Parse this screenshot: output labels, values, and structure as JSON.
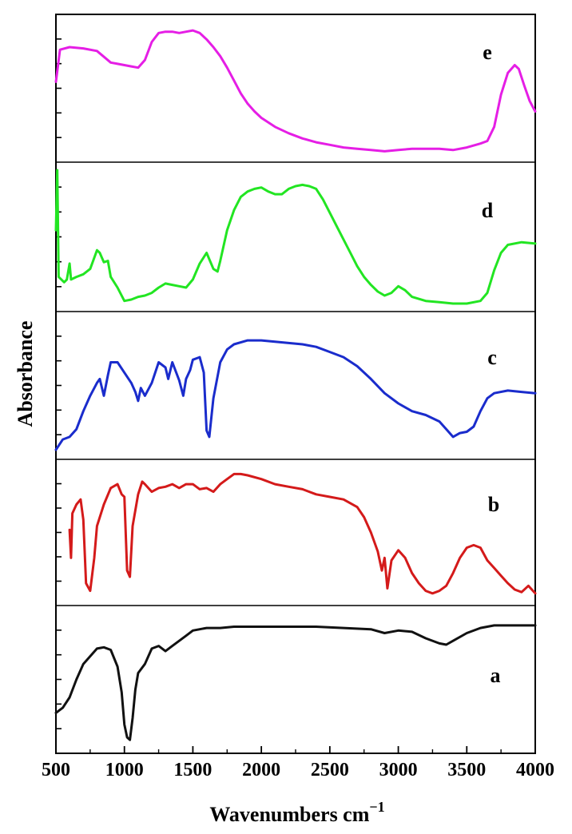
{
  "chart_data": {
    "type": "line",
    "xlabel_text": "Wavenumbers cm",
    "xlabel_sup": "−1",
    "ylabel": "Absorbance",
    "xlim": [
      500,
      4000
    ],
    "x_ticks": [
      500,
      1000,
      1500,
      2000,
      2500,
      3000,
      3500,
      4000
    ],
    "x_tick_labels": [
      "500",
      "1000",
      "1500",
      "2000",
      "2500",
      "3000",
      "3500",
      "4000"
    ],
    "panels": [
      {
        "label": "e",
        "color": "#e51ee5",
        "points": [
          [
            500,
            0.55
          ],
          [
            530,
            0.8
          ],
          [
            600,
            0.82
          ],
          [
            700,
            0.81
          ],
          [
            800,
            0.79
          ],
          [
            900,
            0.7
          ],
          [
            950,
            0.69
          ],
          [
            1000,
            0.68
          ],
          [
            1050,
            0.67
          ],
          [
            1100,
            0.66
          ],
          [
            1150,
            0.72
          ],
          [
            1200,
            0.86
          ],
          [
            1250,
            0.93
          ],
          [
            1300,
            0.94
          ],
          [
            1350,
            0.94
          ],
          [
            1400,
            0.93
          ],
          [
            1450,
            0.94
          ],
          [
            1500,
            0.95
          ],
          [
            1550,
            0.93
          ],
          [
            1600,
            0.88
          ],
          [
            1650,
            0.82
          ],
          [
            1700,
            0.75
          ],
          [
            1750,
            0.66
          ],
          [
            1800,
            0.56
          ],
          [
            1850,
            0.46
          ],
          [
            1900,
            0.38
          ],
          [
            1950,
            0.32
          ],
          [
            2000,
            0.27
          ],
          [
            2100,
            0.2
          ],
          [
            2200,
            0.15
          ],
          [
            2300,
            0.11
          ],
          [
            2400,
            0.08
          ],
          [
            2500,
            0.06
          ],
          [
            2600,
            0.04
          ],
          [
            2700,
            0.03
          ],
          [
            2800,
            0.02
          ],
          [
            2900,
            0.01
          ],
          [
            3000,
            0.02
          ],
          [
            3100,
            0.03
          ],
          [
            3200,
            0.03
          ],
          [
            3300,
            0.03
          ],
          [
            3400,
            0.02
          ],
          [
            3500,
            0.04
          ],
          [
            3600,
            0.07
          ],
          [
            3650,
            0.09
          ],
          [
            3700,
            0.2
          ],
          [
            3750,
            0.45
          ],
          [
            3800,
            0.62
          ],
          [
            3850,
            0.68
          ],
          [
            3880,
            0.65
          ],
          [
            3920,
            0.52
          ],
          [
            3960,
            0.4
          ],
          [
            4000,
            0.32
          ]
        ]
      },
      {
        "label": "d",
        "color": "#22e522",
        "points": [
          [
            500,
            0.55
          ],
          [
            510,
            1.0
          ],
          [
            520,
            0.2
          ],
          [
            560,
            0.16
          ],
          [
            580,
            0.18
          ],
          [
            600,
            0.3
          ],
          [
            610,
            0.18
          ],
          [
            650,
            0.2
          ],
          [
            700,
            0.22
          ],
          [
            750,
            0.26
          ],
          [
            800,
            0.4
          ],
          [
            820,
            0.38
          ],
          [
            850,
            0.31
          ],
          [
            880,
            0.32
          ],
          [
            900,
            0.2
          ],
          [
            950,
            0.12
          ],
          [
            1000,
            0.02
          ],
          [
            1050,
            0.03
          ],
          [
            1100,
            0.05
          ],
          [
            1150,
            0.06
          ],
          [
            1200,
            0.08
          ],
          [
            1250,
            0.12
          ],
          [
            1300,
            0.15
          ],
          [
            1350,
            0.14
          ],
          [
            1400,
            0.13
          ],
          [
            1450,
            0.12
          ],
          [
            1500,
            0.18
          ],
          [
            1550,
            0.3
          ],
          [
            1600,
            0.38
          ],
          [
            1650,
            0.26
          ],
          [
            1680,
            0.24
          ],
          [
            1700,
            0.32
          ],
          [
            1750,
            0.55
          ],
          [
            1800,
            0.7
          ],
          [
            1850,
            0.8
          ],
          [
            1900,
            0.84
          ],
          [
            1950,
            0.86
          ],
          [
            2000,
            0.87
          ],
          [
            2050,
            0.84
          ],
          [
            2100,
            0.82
          ],
          [
            2150,
            0.82
          ],
          [
            2200,
            0.86
          ],
          [
            2250,
            0.88
          ],
          [
            2300,
            0.89
          ],
          [
            2350,
            0.88
          ],
          [
            2400,
            0.86
          ],
          [
            2450,
            0.78
          ],
          [
            2500,
            0.68
          ],
          [
            2550,
            0.58
          ],
          [
            2600,
            0.48
          ],
          [
            2650,
            0.38
          ],
          [
            2700,
            0.28
          ],
          [
            2750,
            0.2
          ],
          [
            2800,
            0.14
          ],
          [
            2850,
            0.09
          ],
          [
            2900,
            0.06
          ],
          [
            2950,
            0.08
          ],
          [
            3000,
            0.13
          ],
          [
            3050,
            0.1
          ],
          [
            3100,
            0.05
          ],
          [
            3200,
            0.02
          ],
          [
            3300,
            0.01
          ],
          [
            3400,
            0.0
          ],
          [
            3500,
            0.0
          ],
          [
            3600,
            0.02
          ],
          [
            3650,
            0.08
          ],
          [
            3700,
            0.25
          ],
          [
            3750,
            0.38
          ],
          [
            3800,
            0.44
          ],
          [
            3900,
            0.46
          ],
          [
            4000,
            0.45
          ]
        ]
      },
      {
        "label": "c",
        "color": "#1a2ccc",
        "points": [
          [
            500,
            0.0
          ],
          [
            550,
            0.08
          ],
          [
            600,
            0.1
          ],
          [
            650,
            0.16
          ],
          [
            700,
            0.3
          ],
          [
            750,
            0.42
          ],
          [
            800,
            0.52
          ],
          [
            820,
            0.55
          ],
          [
            850,
            0.42
          ],
          [
            880,
            0.58
          ],
          [
            900,
            0.68
          ],
          [
            950,
            0.68
          ],
          [
            1000,
            0.6
          ],
          [
            1050,
            0.52
          ],
          [
            1080,
            0.45
          ],
          [
            1100,
            0.38
          ],
          [
            1120,
            0.48
          ],
          [
            1150,
            0.42
          ],
          [
            1200,
            0.52
          ],
          [
            1250,
            0.68
          ],
          [
            1300,
            0.64
          ],
          [
            1320,
            0.55
          ],
          [
            1350,
            0.68
          ],
          [
            1400,
            0.54
          ],
          [
            1430,
            0.42
          ],
          [
            1450,
            0.55
          ],
          [
            1480,
            0.62
          ],
          [
            1500,
            0.7
          ],
          [
            1550,
            0.72
          ],
          [
            1580,
            0.6
          ],
          [
            1600,
            0.15
          ],
          [
            1620,
            0.1
          ],
          [
            1650,
            0.4
          ],
          [
            1700,
            0.68
          ],
          [
            1750,
            0.78
          ],
          [
            1800,
            0.82
          ],
          [
            1900,
            0.85
          ],
          [
            2000,
            0.85
          ],
          [
            2100,
            0.84
          ],
          [
            2200,
            0.83
          ],
          [
            2300,
            0.82
          ],
          [
            2400,
            0.8
          ],
          [
            2500,
            0.76
          ],
          [
            2600,
            0.72
          ],
          [
            2700,
            0.65
          ],
          [
            2800,
            0.55
          ],
          [
            2900,
            0.44
          ],
          [
            3000,
            0.36
          ],
          [
            3100,
            0.3
          ],
          [
            3200,
            0.27
          ],
          [
            3300,
            0.22
          ],
          [
            3350,
            0.16
          ],
          [
            3400,
            0.1
          ],
          [
            3450,
            0.13
          ],
          [
            3500,
            0.14
          ],
          [
            3550,
            0.18
          ],
          [
            3600,
            0.3
          ],
          [
            3650,
            0.4
          ],
          [
            3700,
            0.44
          ],
          [
            3800,
            0.46
          ],
          [
            3900,
            0.45
          ],
          [
            4000,
            0.44
          ]
        ]
      },
      {
        "label": "b",
        "color": "#d41a1a",
        "points": [
          [
            600,
            0.52
          ],
          [
            610,
            0.3
          ],
          [
            620,
            0.65
          ],
          [
            650,
            0.72
          ],
          [
            680,
            0.76
          ],
          [
            700,
            0.6
          ],
          [
            720,
            0.1
          ],
          [
            750,
            0.04
          ],
          [
            780,
            0.3
          ],
          [
            800,
            0.55
          ],
          [
            850,
            0.72
          ],
          [
            900,
            0.85
          ],
          [
            950,
            0.88
          ],
          [
            980,
            0.8
          ],
          [
            1000,
            0.78
          ],
          [
            1020,
            0.2
          ],
          [
            1040,
            0.15
          ],
          [
            1060,
            0.55
          ],
          [
            1100,
            0.8
          ],
          [
            1130,
            0.9
          ],
          [
            1150,
            0.88
          ],
          [
            1200,
            0.82
          ],
          [
            1250,
            0.85
          ],
          [
            1300,
            0.86
          ],
          [
            1350,
            0.88
          ],
          [
            1400,
            0.85
          ],
          [
            1450,
            0.88
          ],
          [
            1500,
            0.88
          ],
          [
            1550,
            0.84
          ],
          [
            1600,
            0.85
          ],
          [
            1650,
            0.82
          ],
          [
            1700,
            0.88
          ],
          [
            1750,
            0.92
          ],
          [
            1800,
            0.96
          ],
          [
            1850,
            0.96
          ],
          [
            1900,
            0.95
          ],
          [
            2000,
            0.92
          ],
          [
            2100,
            0.88
          ],
          [
            2200,
            0.86
          ],
          [
            2300,
            0.84
          ],
          [
            2400,
            0.8
          ],
          [
            2500,
            0.78
          ],
          [
            2600,
            0.76
          ],
          [
            2700,
            0.7
          ],
          [
            2750,
            0.62
          ],
          [
            2800,
            0.5
          ],
          [
            2850,
            0.35
          ],
          [
            2880,
            0.2
          ],
          [
            2900,
            0.3
          ],
          [
            2920,
            0.06
          ],
          [
            2950,
            0.28
          ],
          [
            3000,
            0.36
          ],
          [
            3050,
            0.3
          ],
          [
            3100,
            0.18
          ],
          [
            3150,
            0.1
          ],
          [
            3200,
            0.04
          ],
          [
            3250,
            0.02
          ],
          [
            3300,
            0.04
          ],
          [
            3350,
            0.08
          ],
          [
            3400,
            0.18
          ],
          [
            3450,
            0.3
          ],
          [
            3500,
            0.38
          ],
          [
            3550,
            0.4
          ],
          [
            3600,
            0.38
          ],
          [
            3650,
            0.28
          ],
          [
            3700,
            0.22
          ],
          [
            3750,
            0.16
          ],
          [
            3800,
            0.1
          ],
          [
            3850,
            0.05
          ],
          [
            3900,
            0.03
          ],
          [
            3950,
            0.08
          ],
          [
            4000,
            0.02
          ]
        ]
      },
      {
        "label": "a",
        "color": "#111111",
        "points": [
          [
            500,
            0.24
          ],
          [
            550,
            0.28
          ],
          [
            600,
            0.36
          ],
          [
            650,
            0.5
          ],
          [
            700,
            0.62
          ],
          [
            750,
            0.68
          ],
          [
            800,
            0.74
          ],
          [
            850,
            0.75
          ],
          [
            900,
            0.73
          ],
          [
            950,
            0.6
          ],
          [
            980,
            0.4
          ],
          [
            1000,
            0.15
          ],
          [
            1020,
            0.05
          ],
          [
            1040,
            0.03
          ],
          [
            1060,
            0.2
          ],
          [
            1080,
            0.42
          ],
          [
            1100,
            0.55
          ],
          [
            1150,
            0.62
          ],
          [
            1200,
            0.74
          ],
          [
            1250,
            0.76
          ],
          [
            1300,
            0.72
          ],
          [
            1350,
            0.76
          ],
          [
            1400,
            0.8
          ],
          [
            1450,
            0.84
          ],
          [
            1500,
            0.88
          ],
          [
            1600,
            0.9
          ],
          [
            1700,
            0.9
          ],
          [
            1800,
            0.91
          ],
          [
            1900,
            0.91
          ],
          [
            2000,
            0.91
          ],
          [
            2200,
            0.91
          ],
          [
            2400,
            0.91
          ],
          [
            2600,
            0.9
          ],
          [
            2800,
            0.89
          ],
          [
            2900,
            0.86
          ],
          [
            3000,
            0.88
          ],
          [
            3100,
            0.87
          ],
          [
            3200,
            0.82
          ],
          [
            3300,
            0.78
          ],
          [
            3350,
            0.77
          ],
          [
            3400,
            0.8
          ],
          [
            3500,
            0.86
          ],
          [
            3600,
            0.9
          ],
          [
            3700,
            0.92
          ],
          [
            3800,
            0.92
          ],
          [
            4000,
            0.92
          ]
        ]
      }
    ]
  }
}
